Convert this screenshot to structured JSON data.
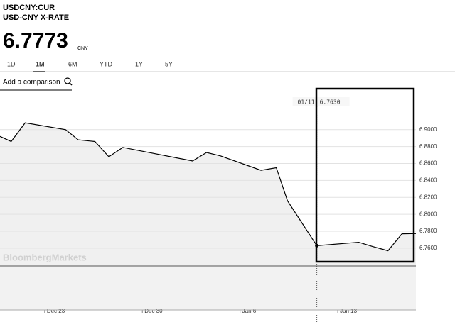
{
  "header": {
    "ticker": "USDCNY:CUR",
    "name": "USD-CNY X-RATE",
    "price": "6.7773",
    "currency": "CNY"
  },
  "tabs": [
    "1D",
    "1M",
    "6M",
    "YTD",
    "1Y",
    "5Y"
  ],
  "active_tab": 1,
  "search": {
    "placeholder": "Add a comparison"
  },
  "watermark": "BloombergMarkets",
  "chart_data": {
    "type": "line",
    "x": [
      19.8,
      20.6,
      21.6,
      24.5,
      25.4,
      26.6,
      27.6,
      28.6,
      33.6,
      34.6,
      35.6,
      38.5,
      39.6,
      40.4,
      42.5,
      45.5,
      46.5,
      47.6,
      48.6,
      49.6
    ],
    "series": [
      {
        "color": "#000000",
        "values": [
          6.892,
          6.886,
          6.908,
          6.9,
          6.888,
          6.886,
          6.868,
          6.879,
          6.863,
          6.873,
          6.869,
          6.852,
          6.855,
          6.816,
          6.763,
          6.767,
          6.762,
          6.757,
          6.777,
          6.7773
        ]
      }
    ],
    "xlim": [
      19.8,
      49.6
    ],
    "xticks": [
      {
        "value": 23,
        "label": "Dec 23"
      },
      {
        "value": 30,
        "label": "Dec 30"
      },
      {
        "value": 37,
        "label": "Jan 6"
      },
      {
        "value": 44,
        "label": "Jan 13"
      }
    ],
    "ylim": [
      6.739,
      6.94
    ],
    "yticks": [
      {
        "value": 6.76,
        "label": "6.7600"
      },
      {
        "value": 6.78,
        "label": "6.7800"
      },
      {
        "value": 6.8,
        "label": "6.8000"
      },
      {
        "value": 6.82,
        "label": "6.8200"
      },
      {
        "value": 6.84,
        "label": "6.8400"
      },
      {
        "value": 6.86,
        "label": "6.8600"
      },
      {
        "value": 6.88,
        "label": "6.8800"
      },
      {
        "value": 6.9,
        "label": "6.9000"
      }
    ],
    "grid": true,
    "tooltip": {
      "date": "01/11",
      "index": 14,
      "value_label": "6.7630"
    }
  }
}
